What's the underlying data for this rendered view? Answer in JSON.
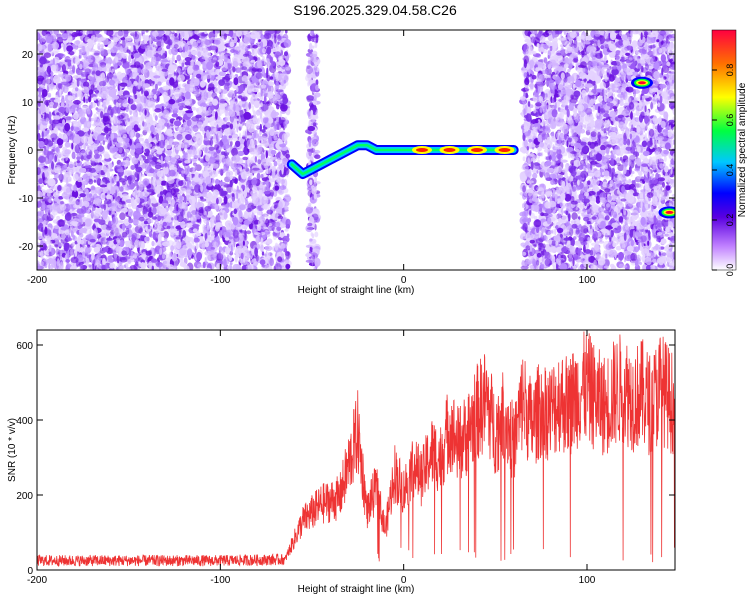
{
  "title": "S196.2025.329.04.58.C26",
  "chart_data": [
    {
      "type": "heatmap",
      "xlabel": "Height of straight line (km)",
      "ylabel": "Frequency (Hz)",
      "xlim": [
        -200,
        148
      ],
      "ylim": [
        -25,
        25
      ],
      "xticks": [
        -200,
        -100,
        0,
        100
      ],
      "yticks": [
        -20,
        -10,
        0,
        10,
        20
      ],
      "colorbar": {
        "label": "Normalized spectral amplitude",
        "ticks": [
          "0.0",
          "0.2",
          "0.4",
          "0.6",
          "0.8"
        ],
        "range": [
          0,
          0.96
        ]
      },
      "noise_regions_km": [
        [
          -200,
          -63
        ],
        [
          -52,
          -47
        ],
        [
          65,
          148
        ]
      ],
      "signal_track": [
        {
          "x": -61,
          "y": -3
        },
        {
          "x": -55,
          "y": -5
        },
        {
          "x": -50,
          "y": -4
        },
        {
          "x": -45,
          "y": -3
        },
        {
          "x": -40,
          "y": -2
        },
        {
          "x": -35,
          "y": -1
        },
        {
          "x": -30,
          "y": 0
        },
        {
          "x": -25,
          "y": 1
        },
        {
          "x": -20,
          "y": 1
        },
        {
          "x": -15,
          "y": 0
        },
        {
          "x": -10,
          "y": 0
        },
        {
          "x": 0,
          "y": 0
        },
        {
          "x": 15,
          "y": 0
        },
        {
          "x": 30,
          "y": 0
        },
        {
          "x": 45,
          "y": 0
        },
        {
          "x": 60,
          "y": 0
        }
      ],
      "peaks": [
        {
          "x": 130,
          "y": 14,
          "value": 0.95
        },
        {
          "x": 145,
          "y": -13,
          "value": 0.95
        }
      ]
    },
    {
      "type": "line",
      "xlabel": "Height of straight line (km)",
      "ylabel": "SNR (10 * v/v)",
      "xlim": [
        -200,
        148
      ],
      "ylim": [
        0,
        640
      ],
      "xticks": [
        -200,
        -100,
        0,
        100
      ],
      "yticks": [
        0,
        200,
        400,
        600
      ],
      "color": "#ee3333",
      "series": [
        {
          "name": "SNR",
          "x": [
            -200,
            -150,
            -100,
            -65,
            -55,
            -45,
            -35,
            -25,
            -20,
            -15,
            -10,
            -5,
            0,
            5,
            10,
            15,
            20,
            25,
            30,
            35,
            40,
            45,
            50,
            55,
            60,
            65,
            70,
            75,
            80,
            85,
            90,
            95,
            100,
            105,
            110,
            115,
            120,
            125,
            130,
            135,
            140,
            145,
            148
          ],
          "y": [
            25,
            25,
            25,
            28,
            150,
            200,
            220,
            420,
            180,
            250,
            120,
            300,
            240,
            320,
            280,
            360,
            340,
            440,
            380,
            420,
            480,
            520,
            420,
            480,
            380,
            520,
            440,
            500,
            480,
            520,
            500,
            540,
            560,
            520,
            500,
            540,
            560,
            520,
            540,
            500,
            560,
            520,
            500
          ]
        }
      ]
    }
  ]
}
